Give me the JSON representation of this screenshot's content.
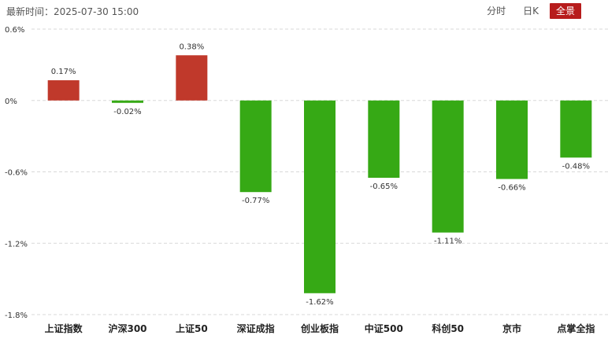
{
  "header": {
    "update_label": "最新时间：",
    "update_time": "2025-07-30 15:00"
  },
  "tabs": [
    {
      "label": "分时",
      "active": false
    },
    {
      "label": "日K",
      "active": false
    },
    {
      "label": "全景",
      "active": true
    }
  ],
  "colors": {
    "up": "#c0392b",
    "down": "#36a915",
    "active_tab": "#b71c1c"
  },
  "chart_data": {
    "type": "bar",
    "categories": [
      "上证指数",
      "沪深300",
      "上证50",
      "深证成指",
      "创业板指",
      "中证500",
      "科创50",
      "京市",
      "点掌全指"
    ],
    "values": [
      0.17,
      -0.02,
      0.38,
      -0.77,
      -1.62,
      -0.65,
      -1.11,
      -0.66,
      -0.48
    ],
    "value_labels": [
      "0.17%",
      "-0.02%",
      "0.38%",
      "-0.77%",
      "-1.62%",
      "-0.65%",
      "-1.11%",
      "-0.66%",
      "-0.48%"
    ],
    "yticks": [
      0.6,
      0,
      -0.6,
      -1.2,
      -1.8
    ],
    "ytick_labels": [
      "0.6%",
      "0%",
      "-0.6%",
      "-1.2%",
      "-1.8%"
    ],
    "ylim": [
      -1.8,
      0.6
    ],
    "grid": true,
    "title": "",
    "xlabel": "",
    "ylabel": ""
  }
}
